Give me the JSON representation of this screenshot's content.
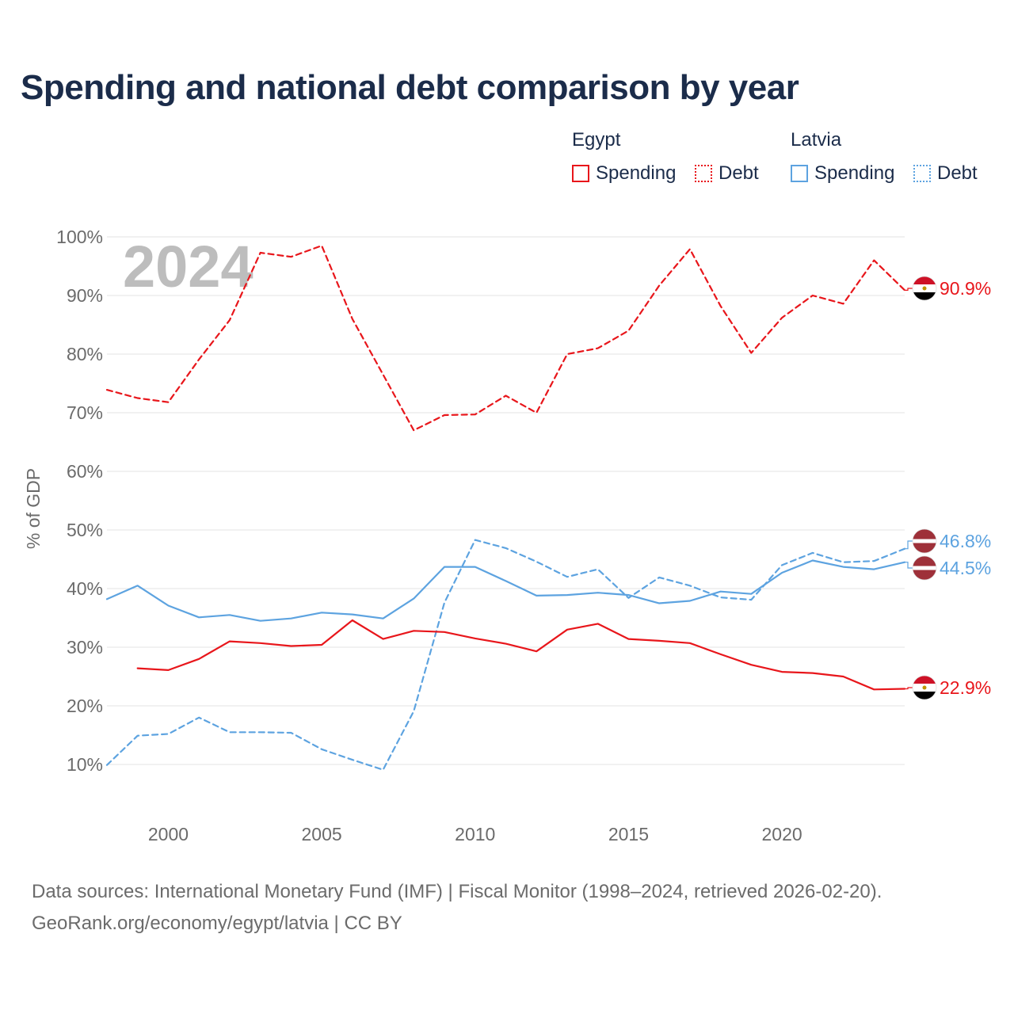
{
  "title": "Spending and national debt comparison by year",
  "legend": {
    "egypt": {
      "name": "Egypt",
      "spending": "Spending",
      "debt": "Debt"
    },
    "latvia": {
      "name": "Latvia",
      "spending": "Spending",
      "debt": "Debt"
    }
  },
  "colors": {
    "egypt": "#e8161b",
    "latvia": "#5da3e0",
    "grid": "#e3e3e3",
    "tick": "#6b6b6b",
    "year": "#bdbdbd"
  },
  "source": {
    "line1": "Data sources: International Monetary Fund (IMF) | Fiscal Monitor (1998–2024, retrieved 2026-02-20).",
    "line2": "GeoRank.org/economy/egypt/latvia | CC BY"
  },
  "chart_data": {
    "type": "line",
    "year_label": "2024",
    "ylabel": "% of GDP",
    "xlim": [
      1998,
      2024
    ],
    "ylim": [
      10,
      100
    ],
    "xticks": [
      2000,
      2005,
      2010,
      2015,
      2020
    ],
    "yticks": [
      10,
      20,
      30,
      40,
      50,
      60,
      70,
      80,
      90,
      100
    ],
    "series": [
      {
        "name": "Egypt Debt",
        "country": "egypt",
        "style": "dashed",
        "end_label": "90.9%",
        "x": [
          1998,
          1999,
          2000,
          2001,
          2002,
          2003,
          2004,
          2005,
          2006,
          2007,
          2008,
          2009,
          2010,
          2011,
          2012,
          2013,
          2014,
          2015,
          2016,
          2017,
          2018,
          2019,
          2020,
          2021,
          2022,
          2023,
          2024
        ],
        "values": [
          73.9,
          72.5,
          71.8,
          79.1,
          85.8,
          97.3,
          96.6,
          98.5,
          86.0,
          76.5,
          67.0,
          69.6,
          69.7,
          72.9,
          70.0,
          80.0,
          81.0,
          84.0,
          91.7,
          97.9,
          88.2,
          80.2,
          86.2,
          90.0,
          88.6,
          96.0,
          90.9
        ]
      },
      {
        "name": "Latvia Debt",
        "country": "latvia",
        "style": "dashed",
        "end_label": "46.8%",
        "x": [
          1998,
          1999,
          2000,
          2001,
          2002,
          2003,
          2004,
          2005,
          2006,
          2007,
          2008,
          2009,
          2010,
          2011,
          2012,
          2013,
          2014,
          2015,
          2016,
          2017,
          2018,
          2019,
          2020,
          2021,
          2022,
          2023,
          2024
        ],
        "values": [
          9.9,
          14.9,
          15.2,
          18.0,
          15.5,
          15.5,
          15.4,
          12.6,
          10.8,
          9.1,
          19.1,
          37.6,
          48.3,
          46.9,
          44.6,
          42.0,
          43.3,
          38.4,
          41.9,
          40.5,
          38.5,
          38.1,
          44.0,
          46.1,
          44.5,
          44.7,
          46.8
        ]
      },
      {
        "name": "Latvia Spending",
        "country": "latvia",
        "style": "solid",
        "end_label": "44.5%",
        "x": [
          1998,
          1999,
          2000,
          2001,
          2002,
          2003,
          2004,
          2005,
          2006,
          2007,
          2008,
          2009,
          2010,
          2011,
          2012,
          2013,
          2014,
          2015,
          2016,
          2017,
          2018,
          2019,
          2020,
          2021,
          2022,
          2023,
          2024
        ],
        "values": [
          38.2,
          40.5,
          37.1,
          35.1,
          35.5,
          34.5,
          34.9,
          35.9,
          35.6,
          34.9,
          38.3,
          43.7,
          43.7,
          41.3,
          38.8,
          38.9,
          39.3,
          38.9,
          37.5,
          37.9,
          39.5,
          39.1,
          42.7,
          44.8,
          43.7,
          43.3,
          44.5
        ]
      },
      {
        "name": "Egypt Spending",
        "country": "egypt",
        "style": "solid",
        "end_label": "22.9%",
        "x": [
          1999,
          2000,
          2001,
          2002,
          2003,
          2004,
          2005,
          2006,
          2007,
          2008,
          2009,
          2010,
          2011,
          2012,
          2013,
          2014,
          2015,
          2016,
          2017,
          2018,
          2019,
          2020,
          2021,
          2022,
          2023,
          2024
        ],
        "values": [
          26.4,
          26.1,
          28.0,
          31.0,
          30.7,
          30.2,
          30.4,
          34.6,
          31.4,
          32.8,
          32.6,
          31.5,
          30.6,
          29.3,
          33.0,
          34.0,
          31.4,
          31.1,
          30.7,
          28.8,
          27.0,
          25.8,
          25.6,
          25.0,
          22.8,
          22.9
        ]
      }
    ]
  }
}
